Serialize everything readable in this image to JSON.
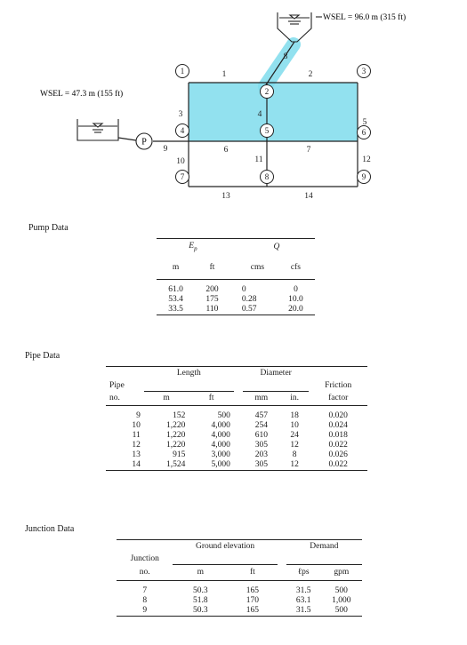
{
  "diagram": {
    "wsel_upper": "WSEL = 96.0 m (315 ft)",
    "wsel_lower": "WSEL = 47.3 m (155 ft)",
    "pump_label": "P",
    "highlight_color": "#7fdcec",
    "pipe_labels": {
      "p1": "1",
      "p2": "2",
      "p3": "3",
      "p4": "4",
      "p5": "5",
      "p6": "6",
      "p7": "7",
      "p8": "8",
      "p9": "9",
      "p10": "10",
      "p11": "11",
      "p12": "12",
      "p13": "13",
      "p14": "14"
    },
    "nodes": {
      "n1": "1",
      "n2": "2",
      "n3": "3",
      "n4": "4",
      "n5": "5",
      "n6": "6",
      "n7": "7",
      "n8": "8",
      "n9": "9"
    }
  },
  "pump_data": {
    "title": "Pump Data",
    "head_ep": "E",
    "head_ep_sub": "p",
    "head_q": "Q",
    "units": [
      "m",
      "ft",
      "cms",
      "cfs"
    ],
    "rows": [
      [
        "61.0",
        "200",
        "0",
        "0"
      ],
      [
        "53.4",
        "175",
        "0.28",
        "10.0"
      ],
      [
        "33.5",
        "110",
        "0.57",
        "20.0"
      ]
    ]
  },
  "pipe_data": {
    "title": "Pipe Data",
    "head_pipe": "Pipe",
    "head_no": "no.",
    "head_length": "Length",
    "head_diameter": "Diameter",
    "head_friction": "Friction",
    "head_factor": "factor",
    "units": [
      "m",
      "ft",
      "mm",
      "in."
    ],
    "rows": [
      [
        "9",
        "152",
        "500",
        "457",
        "18",
        "0.020"
      ],
      [
        "10",
        "1,220",
        "4,000",
        "254",
        "10",
        "0.024"
      ],
      [
        "11",
        "1,220",
        "4,000",
        "610",
        "24",
        "0.018"
      ],
      [
        "12",
        "1,220",
        "4,000",
        "305",
        "12",
        "0.022"
      ],
      [
        "13",
        "915",
        "3,000",
        "203",
        "8",
        "0.026"
      ],
      [
        "14",
        "1,524",
        "5,000",
        "305",
        "12",
        "0.022"
      ]
    ]
  },
  "junction_data": {
    "title": "Junction Data",
    "head_junction": "Junction",
    "head_no": "no.",
    "head_ground": "Ground elevation",
    "head_demand": "Demand",
    "units": [
      "m",
      "ft",
      "ℓps",
      "gpm"
    ],
    "rows": [
      [
        "7",
        "50.3",
        "165",
        "31.5",
        "500"
      ],
      [
        "8",
        "51.8",
        "170",
        "63.1",
        "1,000"
      ],
      [
        "9",
        "50.3",
        "165",
        "31.5",
        "500"
      ]
    ]
  }
}
